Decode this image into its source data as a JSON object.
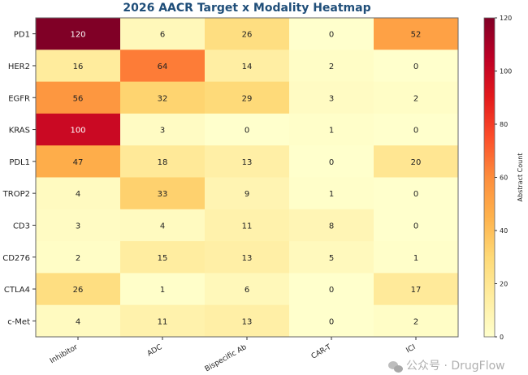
{
  "chart_data": {
    "type": "heatmap",
    "title": "2026 AACR Target x Modality Heatmap",
    "rows": [
      "PD1",
      "HER2",
      "EGFR",
      "KRAS",
      "PDL1",
      "TROP2",
      "CD3",
      "CD276",
      "CTLA4",
      "c-Met"
    ],
    "columns": [
      "Inhibitor",
      "ADC",
      "Bispecific Ab",
      "CAR-T",
      "ICI"
    ],
    "values": [
      [
        120,
        6,
        26,
        0,
        52
      ],
      [
        16,
        64,
        14,
        2,
        0
      ],
      [
        56,
        32,
        29,
        3,
        2
      ],
      [
        100,
        3,
        0,
        1,
        0
      ],
      [
        47,
        18,
        13,
        0,
        20
      ],
      [
        4,
        33,
        9,
        1,
        0
      ],
      [
        3,
        4,
        11,
        8,
        0
      ],
      [
        2,
        15,
        13,
        5,
        1
      ],
      [
        26,
        1,
        6,
        0,
        17
      ],
      [
        4,
        11,
        13,
        0,
        2
      ]
    ],
    "colormap": "YlOrRd",
    "colormap_stops": [
      "#ffffcc",
      "#ffeda0",
      "#fed976",
      "#feb24c",
      "#fd8d3c",
      "#fc4e2a",
      "#e31a1c",
      "#bd0026",
      "#800026"
    ],
    "value_range": [
      0,
      120
    ],
    "colorbar": {
      "label": "Abstract Count",
      "ticks": [
        0,
        20,
        40,
        60,
        80,
        100,
        120
      ]
    }
  },
  "watermark": "公众号 · DrugFlow"
}
